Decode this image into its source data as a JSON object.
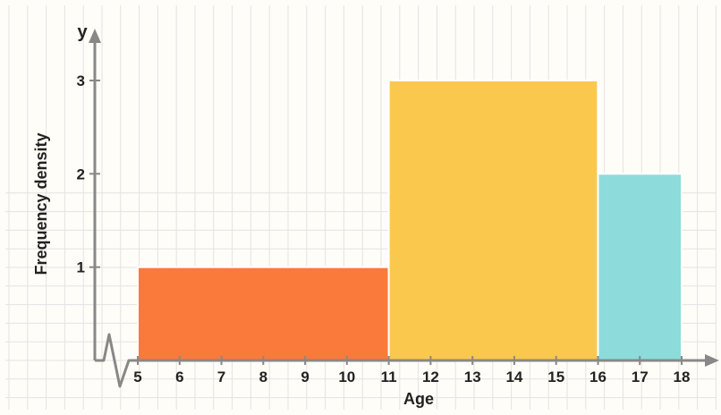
{
  "chart_data": {
    "type": "bar",
    "title": "",
    "xlabel": "Age",
    "ylabel": "Frequency density",
    "y_axis_symbol": "y",
    "x_axis_break": true,
    "xlim": [
      5,
      18
    ],
    "ylim": [
      0,
      3
    ],
    "grid": true,
    "x_ticks": [
      5,
      6,
      7,
      8,
      9,
      10,
      11,
      12,
      13,
      14,
      15,
      16,
      17,
      18
    ],
    "y_ticks": [
      1,
      2,
      3
    ],
    "bars": [
      {
        "x_start": 5,
        "x_end": 11,
        "value": 1,
        "color": "#f97a3a"
      },
      {
        "x_start": 11,
        "x_end": 16,
        "value": 3,
        "color": "#fbc84e"
      },
      {
        "x_start": 16,
        "x_end": 18,
        "value": 2,
        "color": "#8edbdb"
      }
    ]
  }
}
